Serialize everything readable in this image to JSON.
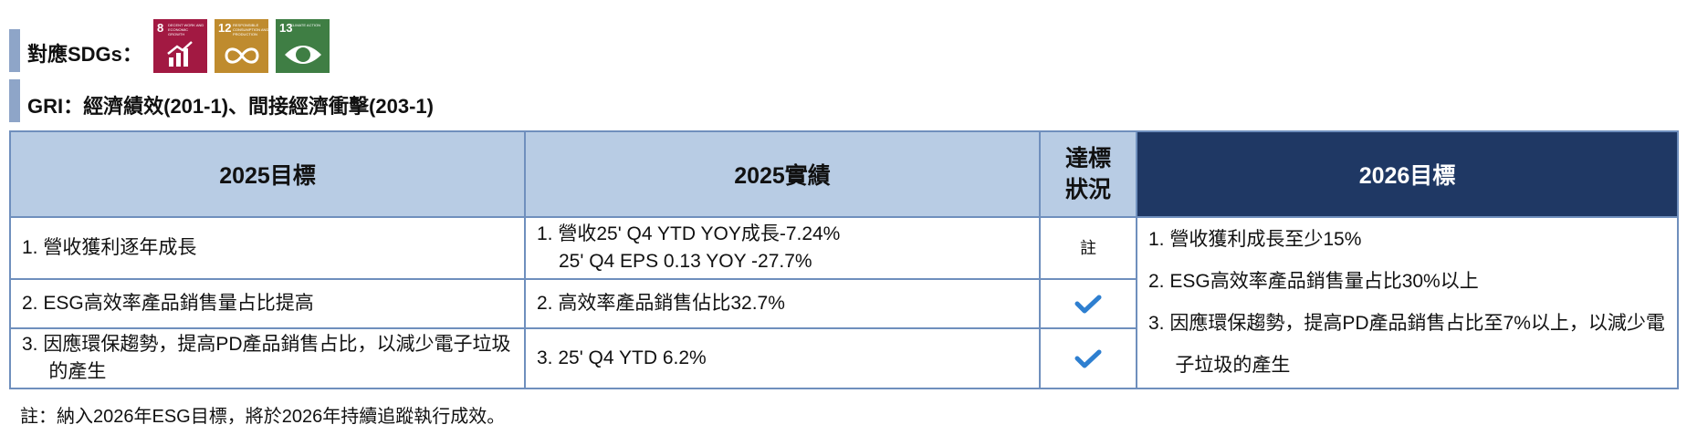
{
  "header": {
    "sdg_label": "對應SDGs：",
    "sdg_icons": [
      {
        "number": "8",
        "label": "DECENT WORK AND ECONOMIC GROWTH"
      },
      {
        "number": "12",
        "label": "RESPONSIBLE CONSUMPTION AND PRODUCTION"
      },
      {
        "number": "13",
        "label": "CLIMATE ACTION"
      }
    ],
    "gri": "GRI：經濟績效(201-1)、間接經濟衝擊(203-1)"
  },
  "table": {
    "columns": [
      "2025目標",
      "2025實績",
      "達標狀況",
      "2026目標"
    ],
    "goals_2025": [
      "1. 營收獲利逐年成長",
      "2. ESG高效率產品銷售量占比提高",
      "3. 因應環保趨勢，提高PD產品銷售占比，以減少電子垃圾的產生"
    ],
    "results_2025": [
      [
        "1. 營收25' Q4 YTD YOY成長-7.24%",
        "25' Q4 EPS 0.13 YOY -27.7%"
      ],
      [
        "2. 高效率產品銷售佔比32.7%"
      ],
      [
        "3. 25' Q4 YTD 6.2%"
      ]
    ],
    "status_note": "註",
    "goals_2026": [
      "1. 營收獲利成長至少15%",
      "2. ESG高效率產品銷售量占比30%以上",
      "3. 因應環保趨勢，提高PD產品銷售占比至7%以上，以減少電子垃圾的產生"
    ]
  },
  "note": "註：納入2026年ESG目標，將於2026年持續追蹤執行成效。"
}
